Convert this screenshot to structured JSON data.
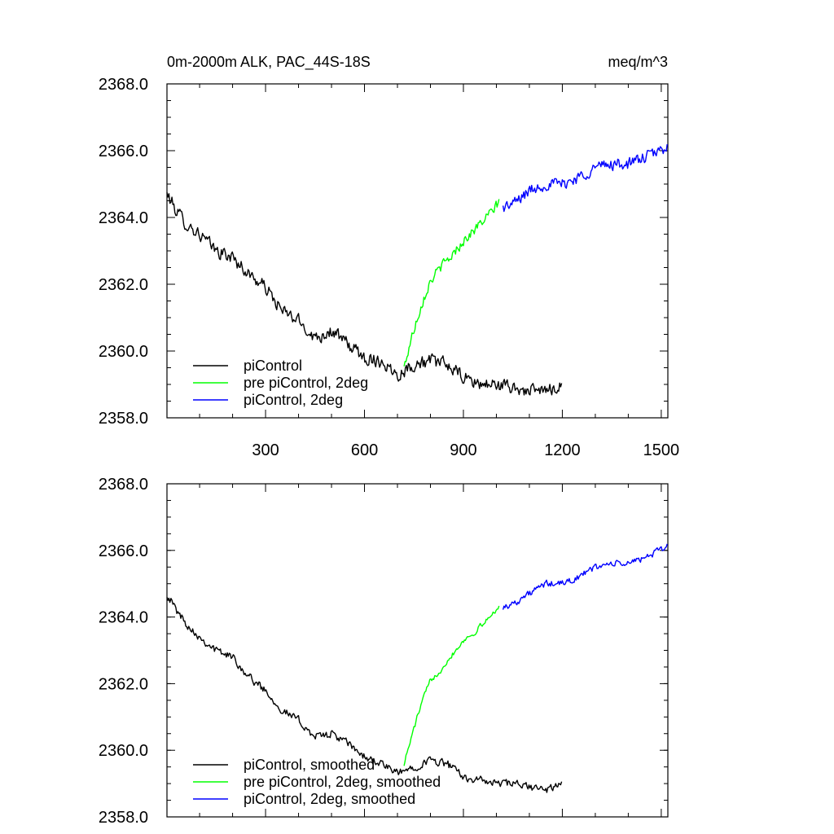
{
  "chart_data": [
    {
      "type": "line",
      "title": "0m-2000m ALK, PAC_44S-18S",
      "units": "meq/m^3",
      "xlim": [
        1,
        1520
      ],
      "ylim": [
        2358.0,
        2368.0
      ],
      "xticks": [
        300,
        600,
        900,
        1200,
        1500
      ],
      "xtick_labels": [
        "300",
        "600",
        "900",
        "1200",
        "1500"
      ],
      "show_xtick_labels": true,
      "yticks": [
        2358.0,
        2360.0,
        2362.0,
        2364.0,
        2366.0,
        2368.0
      ],
      "ytick_labels": [
        "2358.0",
        "2360.0",
        "2362.0",
        "2364.0",
        "2366.0",
        "2368.0"
      ],
      "grid": false,
      "legend_position": "bottom-left",
      "series": [
        {
          "name": "piControl",
          "color": "#000000",
          "noise": 0.2,
          "x": [
            1,
            30,
            60,
            100,
            150,
            200,
            250,
            300,
            350,
            400,
            450,
            500,
            550,
            600,
            650,
            700,
            750,
            800,
            850,
            900,
            950,
            1000,
            1050,
            1100,
            1150,
            1200
          ],
          "y": [
            2364.7,
            2364.2,
            2363.8,
            2363.5,
            2363.0,
            2362.8,
            2362.3,
            2361.9,
            2361.2,
            2360.9,
            2360.4,
            2360.6,
            2360.2,
            2359.8,
            2359.7,
            2359.3,
            2359.6,
            2359.7,
            2359.6,
            2359.2,
            2359.0,
            2359.0,
            2358.9,
            2358.8,
            2358.8,
            2359.0
          ]
        },
        {
          "name": "pre piControl, 2deg",
          "color": "#00ff00",
          "noise": 0.15,
          "x": [
            720,
            740,
            760,
            780,
            800,
            830,
            860,
            900,
            930,
            960,
            990,
            1010
          ],
          "y": [
            2359.5,
            2360.3,
            2361.0,
            2361.6,
            2362.1,
            2362.5,
            2362.8,
            2363.3,
            2363.6,
            2363.9,
            2364.2,
            2364.5
          ]
        },
        {
          "name": "piControl, 2deg",
          "color": "#0000ff",
          "noise": 0.18,
          "x": [
            1020,
            1050,
            1100,
            1150,
            1200,
            1250,
            1300,
            1350,
            1400,
            1450,
            1500,
            1520
          ],
          "y": [
            2364.3,
            2364.4,
            2364.8,
            2365.0,
            2365.0,
            2365.2,
            2365.5,
            2365.6,
            2365.6,
            2365.8,
            2366.0,
            2366.2
          ]
        }
      ]
    },
    {
      "type": "line",
      "xlim": [
        1,
        1520
      ],
      "ylim": [
        2358.0,
        2368.0
      ],
      "xticks": [
        300,
        600,
        900,
        1200,
        1500
      ],
      "xtick_labels": [],
      "show_xtick_labels": false,
      "yticks": [
        2358.0,
        2360.0,
        2362.0,
        2364.0,
        2366.0,
        2368.0
      ],
      "ytick_labels": [
        "2358.0",
        "2360.0",
        "2362.0",
        "2364.0",
        "2366.0",
        "2368.0"
      ],
      "grid": false,
      "legend_position": "bottom-left",
      "series": [
        {
          "name": "piControl, smoothed",
          "color": "#000000",
          "noise": 0.12,
          "x": [
            1,
            30,
            60,
            100,
            150,
            200,
            250,
            300,
            350,
            400,
            450,
            500,
            550,
            600,
            650,
            700,
            750,
            800,
            850,
            900,
            950,
            1000,
            1050,
            1100,
            1150,
            1200
          ],
          "y": [
            2364.7,
            2364.2,
            2363.8,
            2363.4,
            2363.0,
            2362.8,
            2362.2,
            2361.8,
            2361.2,
            2360.9,
            2360.4,
            2360.5,
            2360.2,
            2359.8,
            2359.6,
            2359.3,
            2359.5,
            2359.7,
            2359.6,
            2359.2,
            2359.1,
            2359.0,
            2359.0,
            2358.9,
            2358.8,
            2359.0
          ]
        },
        {
          "name": "pre piControl, 2deg, smoothed",
          "color": "#00ff00",
          "noise": 0.08,
          "x": [
            720,
            740,
            760,
            780,
            800,
            830,
            860,
            900,
            930,
            960,
            990,
            1010
          ],
          "y": [
            2359.6,
            2360.3,
            2361.0,
            2361.6,
            2362.1,
            2362.4,
            2362.8,
            2363.3,
            2363.5,
            2363.8,
            2364.1,
            2364.4
          ]
        },
        {
          "name": "piControl, 2deg, smoothed",
          "color": "#0000ff",
          "noise": 0.1,
          "x": [
            1020,
            1050,
            1100,
            1150,
            1200,
            1250,
            1300,
            1350,
            1400,
            1450,
            1500,
            1520
          ],
          "y": [
            2364.3,
            2364.4,
            2364.7,
            2365.0,
            2365.0,
            2365.2,
            2365.5,
            2365.6,
            2365.6,
            2365.8,
            2366.0,
            2366.2
          ]
        }
      ]
    }
  ]
}
